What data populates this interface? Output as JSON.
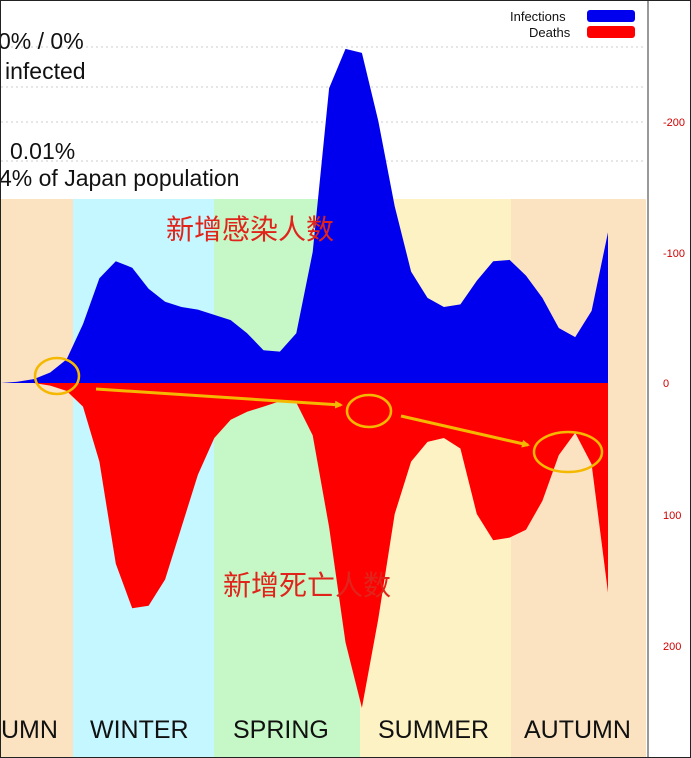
{
  "chart_data": {
    "type": "area",
    "series": [
      {
        "name": "Infections",
        "color": "#0000ee",
        "direction": "up"
      },
      {
        "name": "Deaths",
        "color": "#ff0000",
        "direction": "down"
      }
    ],
    "x": [
      0,
      10,
      20,
      30,
      40,
      50,
      60,
      70,
      80,
      90,
      100,
      110,
      120,
      130,
      140,
      150,
      160,
      170,
      180,
      190,
      200,
      210,
      220,
      230,
      240,
      250,
      260,
      270,
      280,
      290,
      300,
      310,
      320,
      330,
      340,
      350,
      360,
      370
    ],
    "infections": [
      0,
      1,
      3,
      8,
      18,
      45,
      80,
      93,
      88,
      72,
      62,
      58,
      56,
      52,
      48,
      38,
      25,
      24,
      38,
      100,
      225,
      255,
      252,
      200,
      135,
      85,
      65,
      58,
      60,
      78,
      93,
      94,
      82,
      65,
      42,
      35,
      55,
      115
    ],
    "deaths": [
      0,
      0,
      0,
      2,
      6,
      18,
      60,
      138,
      172,
      170,
      150,
      110,
      70,
      42,
      28,
      22,
      18,
      14,
      15,
      40,
      110,
      198,
      248,
      180,
      100,
      60,
      45,
      42,
      50,
      100,
      120,
      118,
      112,
      90,
      55,
      38,
      62,
      160
    ],
    "y_ticks_infections": [
      "-200",
      "-100"
    ],
    "y_ticks_zero": "0",
    "y_ticks_deaths": [
      "100",
      "200"
    ],
    "seasons": [
      "UMN",
      "WINTER",
      "SPRING",
      "SUMMER",
      "AUTUMN"
    ],
    "season_colors": [
      "#fbe3c2",
      "#c4f7ff",
      "#c6f7c6",
      "#fdf2c4",
      "#fbe3c2"
    ],
    "grid": true,
    "legend": "top-right",
    "annotations": {
      "infections_cn": "新增感染人数",
      "deaths_cn": "新增死亡人数"
    }
  },
  "stats": {
    "line1": "0% / 0%",
    "line2": "infected",
    "line3": "0.01%",
    "line4": "4% of Japan population"
  },
  "highlight_color": "#f5b800"
}
